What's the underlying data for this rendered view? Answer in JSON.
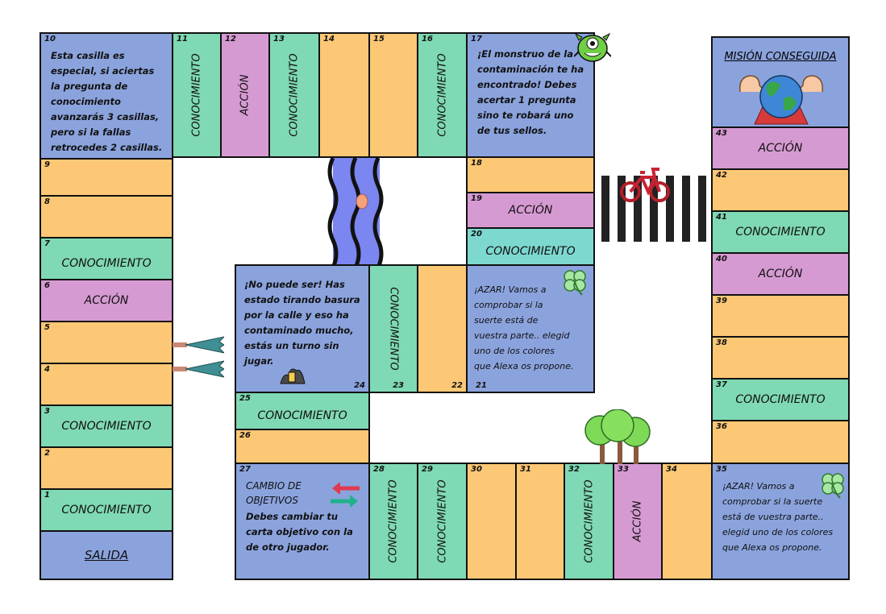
{
  "labels": {
    "knowledge": "CONOCIMIENTO",
    "action": "ACCIÓN",
    "start": "SALIDA",
    "goal": "MISIÓN CONSEGUIDA"
  },
  "numbers": {
    "n1": "1",
    "n2": "2",
    "n3": "3",
    "n4": "4",
    "n5": "5",
    "n6": "6",
    "n7": "7",
    "n8": "8",
    "n9": "9",
    "n10": "10",
    "n11": "11",
    "n12": "12",
    "n13": "13",
    "n14": "14",
    "n15": "15",
    "n16": "16",
    "n17": "17",
    "n18": "18",
    "n19": "19",
    "n20": "20",
    "n21": "21",
    "n22": "22",
    "n23": "23",
    "n24": "24",
    "n25": "25",
    "n26": "26",
    "n27": "27",
    "n28": "28",
    "n29": "29",
    "n30": "30",
    "n31": "31",
    "n32": "32",
    "n33": "33",
    "n34": "34",
    "n35": "35",
    "n36": "36",
    "n37": "37",
    "n38": "38",
    "n39": "39",
    "n40": "40",
    "n41": "41",
    "n42": "42",
    "n43": "43"
  },
  "texts": {
    "c10": "Esta casilla es especial, si aciertas la pregunta de conocimiento avanzarás 3 casillas, pero si la fallas retrocedes 2 casillas.",
    "c17": "¡El monstruo de la contaminación te ha encontrado! Debes acertar 1 pregunta sino te robará uno de tus sellos.",
    "c24": "¡No puede ser! Has estado tirando basura por la calle y eso ha contaminado mucho, estás un turno sin jugar.",
    "c21": "¡AZAR! Vamos a comprobar si la suerte está de vuestra parte.. elegid uno de los colores que Alexa os propone.",
    "c35": "¡AZAR! Vamos a comprobar si la suerte está de vuestra parte.. elegid uno de los colores que Alexa os propone.",
    "c27_title": "CAMBIO DE OBJETIVOS",
    "c27_body": "Debes cambiar tu carta objetivo con la de otro jugador."
  },
  "icons": [
    "monster-icon",
    "earth-icon",
    "bicycle-icon",
    "crosswalk-icon",
    "river-icon",
    "trees-icon",
    "pine-trees-icon",
    "clover-icon",
    "swap-arrows-icon",
    "trash-icon"
  ]
}
